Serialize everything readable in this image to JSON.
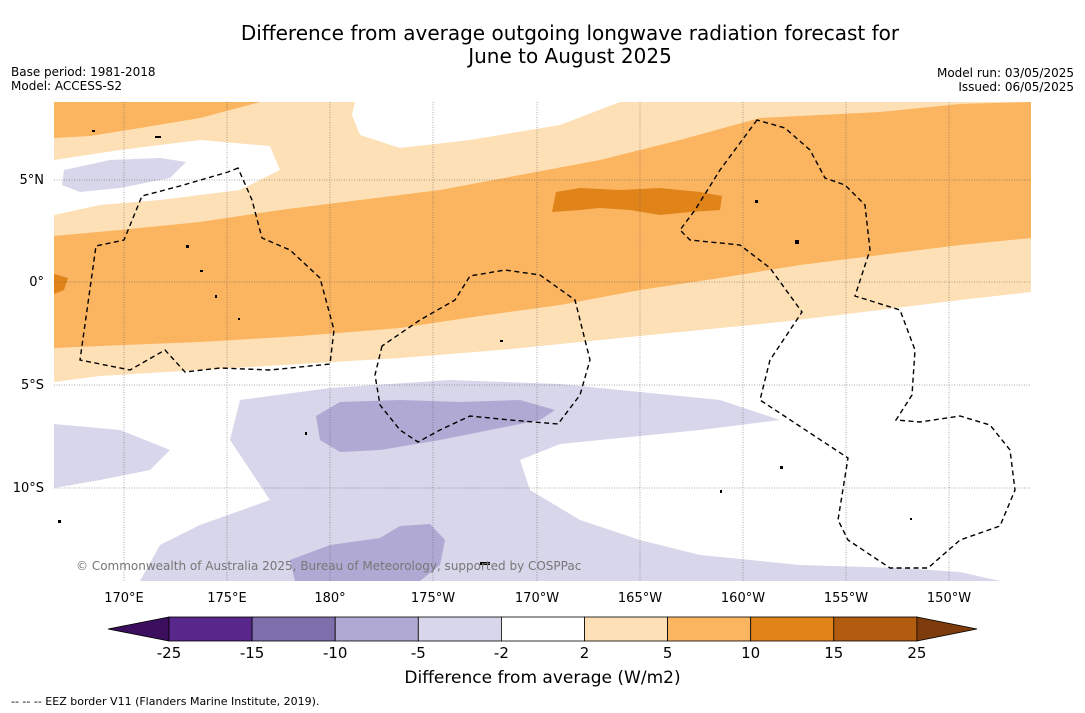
{
  "header": {
    "title_line1": "Difference from average outgoing longwave radiation forecast for",
    "title_line2": "June to August 2025",
    "base_period": "Base period: 1981-2018",
    "model": "Model: ACCESS-S2",
    "model_run": "Model run: 03/05/2025",
    "issued": "Issued: 06/05/2025"
  },
  "map": {
    "lat_labels": [
      "5°N",
      "0°",
      "5°S",
      "10°S"
    ],
    "lon_labels": [
      "170°E",
      "175°E",
      "180°",
      "175°W",
      "170°W",
      "165°W",
      "160°W",
      "155°W",
      "150°W"
    ],
    "copyright": "© Commonwealth of Australia 2025, Bureau of Meteorology, supported by COSPPac"
  },
  "colorbar": {
    "title": "Difference from average (W/m2)",
    "ticks": [
      "-25",
      "-15",
      "-10",
      "-5",
      "-2",
      "2",
      "5",
      "10",
      "15",
      "25"
    ],
    "colors": [
      "#3b0f5e",
      "#57278c",
      "#7f6eac",
      "#b0a9d3",
      "#d7d6ea",
      "#ffffff",
      "#fde0b5",
      "#fbb460",
      "#e0841a",
      "#b25c10",
      "#7e3c0c"
    ]
  },
  "footer": {
    "legend_text": "--  --  -- EEZ border V11 (Flanders Marine Institute, 2019)."
  }
}
